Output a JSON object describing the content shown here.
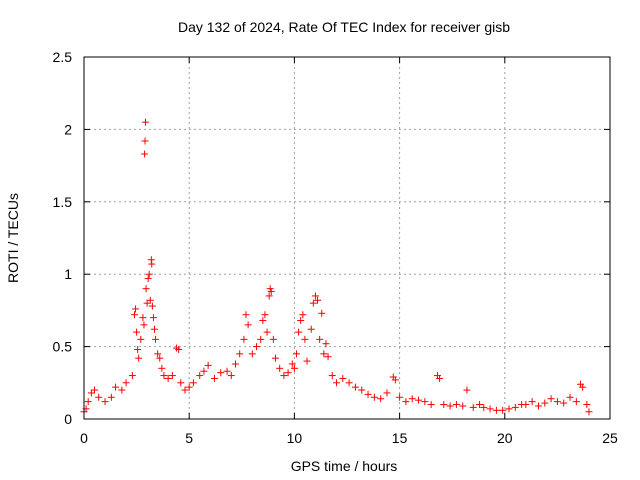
{
  "chart_data": {
    "type": "scatter",
    "title": "Day 132 of 2024, Rate Of TEC Index for receiver gisb",
    "xlabel": "GPS time / hours",
    "ylabel": "ROTI / TECUs",
    "xlim": [
      0,
      25
    ],
    "ylim": [
      0,
      2.5
    ],
    "x_ticks": [
      "0",
      "5",
      "10",
      "15",
      "20",
      "25"
    ],
    "y_ticks": [
      "0",
      "0.5",
      "1",
      "1.5",
      "2",
      "2.5"
    ],
    "grid": true,
    "marker": "+",
    "color": "#ff0000",
    "series": [
      {
        "points": [
          [
            0.0,
            0.05
          ],
          [
            0.1,
            0.07
          ],
          [
            0.2,
            0.12
          ],
          [
            0.35,
            0.18
          ],
          [
            0.5,
            0.2
          ],
          [
            0.7,
            0.15
          ],
          [
            1.0,
            0.12
          ],
          [
            1.3,
            0.15
          ],
          [
            1.5,
            0.22
          ],
          [
            1.8,
            0.2
          ],
          [
            2.0,
            0.25
          ],
          [
            2.3,
            0.3
          ],
          [
            2.4,
            0.72
          ],
          [
            2.45,
            0.76
          ],
          [
            2.5,
            0.6
          ],
          [
            2.55,
            0.48
          ],
          [
            2.6,
            0.42
          ],
          [
            2.7,
            0.55
          ],
          [
            2.8,
            0.7
          ],
          [
            2.85,
            0.65
          ],
          [
            2.88,
            1.83
          ],
          [
            2.9,
            1.92
          ],
          [
            2.92,
            2.05
          ],
          [
            2.95,
            0.9
          ],
          [
            3.0,
            0.8
          ],
          [
            3.05,
            0.97
          ],
          [
            3.1,
            1.0
          ],
          [
            3.15,
            0.82
          ],
          [
            3.2,
            1.1
          ],
          [
            3.22,
            1.07
          ],
          [
            3.25,
            0.78
          ],
          [
            3.3,
            0.7
          ],
          [
            3.35,
            0.62
          ],
          [
            3.4,
            0.55
          ],
          [
            3.5,
            0.45
          ],
          [
            3.6,
            0.42
          ],
          [
            3.7,
            0.35
          ],
          [
            3.8,
            0.3
          ],
          [
            4.0,
            0.28
          ],
          [
            4.2,
            0.3
          ],
          [
            4.4,
            0.49
          ],
          [
            4.5,
            0.48
          ],
          [
            4.6,
            0.25
          ],
          [
            4.8,
            0.2
          ],
          [
            5.0,
            0.22
          ],
          [
            5.2,
            0.25
          ],
          [
            5.5,
            0.3
          ],
          [
            5.7,
            0.33
          ],
          [
            5.9,
            0.37
          ],
          [
            6.2,
            0.28
          ],
          [
            6.5,
            0.32
          ],
          [
            6.8,
            0.33
          ],
          [
            7.0,
            0.3
          ],
          [
            7.2,
            0.38
          ],
          [
            7.4,
            0.45
          ],
          [
            7.6,
            0.55
          ],
          [
            7.7,
            0.72
          ],
          [
            7.8,
            0.65
          ],
          [
            8.0,
            0.45
          ],
          [
            8.2,
            0.5
          ],
          [
            8.4,
            0.55
          ],
          [
            8.5,
            0.68
          ],
          [
            8.6,
            0.72
          ],
          [
            8.7,
            0.6
          ],
          [
            8.8,
            0.85
          ],
          [
            8.85,
            0.9
          ],
          [
            8.9,
            0.88
          ],
          [
            9.0,
            0.55
          ],
          [
            9.1,
            0.42
          ],
          [
            9.3,
            0.35
          ],
          [
            9.5,
            0.3
          ],
          [
            9.7,
            0.32
          ],
          [
            9.9,
            0.38
          ],
          [
            10.0,
            0.35
          ],
          [
            10.1,
            0.45
          ],
          [
            10.2,
            0.6
          ],
          [
            10.3,
            0.68
          ],
          [
            10.4,
            0.72
          ],
          [
            10.5,
            0.55
          ],
          [
            10.6,
            0.4
          ],
          [
            10.8,
            0.62
          ],
          [
            10.9,
            0.8
          ],
          [
            11.0,
            0.85
          ],
          [
            11.1,
            0.82
          ],
          [
            11.2,
            0.55
          ],
          [
            11.3,
            0.73
          ],
          [
            11.4,
            0.45
          ],
          [
            11.5,
            0.52
          ],
          [
            11.6,
            0.43
          ],
          [
            11.8,
            0.3
          ],
          [
            12.0,
            0.25
          ],
          [
            12.3,
            0.28
          ],
          [
            12.6,
            0.25
          ],
          [
            12.9,
            0.22
          ],
          [
            13.2,
            0.2
          ],
          [
            13.5,
            0.17
          ],
          [
            13.8,
            0.15
          ],
          [
            14.1,
            0.14
          ],
          [
            14.4,
            0.18
          ],
          [
            14.7,
            0.29
          ],
          [
            14.8,
            0.27
          ],
          [
            15.0,
            0.15
          ],
          [
            15.3,
            0.12
          ],
          [
            15.6,
            0.14
          ],
          [
            15.9,
            0.13
          ],
          [
            16.2,
            0.12
          ],
          [
            16.5,
            0.1
          ],
          [
            16.8,
            0.3
          ],
          [
            16.9,
            0.28
          ],
          [
            17.1,
            0.1
          ],
          [
            17.4,
            0.09
          ],
          [
            17.7,
            0.1
          ],
          [
            18.0,
            0.09
          ],
          [
            18.2,
            0.2
          ],
          [
            18.5,
            0.08
          ],
          [
            18.8,
            0.1
          ],
          [
            19.0,
            0.08
          ],
          [
            19.3,
            0.07
          ],
          [
            19.6,
            0.06
          ],
          [
            19.9,
            0.06
          ],
          [
            20.2,
            0.07
          ],
          [
            20.5,
            0.08
          ],
          [
            20.8,
            0.1
          ],
          [
            21.0,
            0.1
          ],
          [
            21.3,
            0.12
          ],
          [
            21.6,
            0.09
          ],
          [
            21.9,
            0.11
          ],
          [
            22.2,
            0.14
          ],
          [
            22.5,
            0.12
          ],
          [
            22.8,
            0.11
          ],
          [
            23.1,
            0.15
          ],
          [
            23.4,
            0.12
          ],
          [
            23.6,
            0.24
          ],
          [
            23.7,
            0.22
          ],
          [
            23.9,
            0.1
          ],
          [
            24.0,
            0.05
          ]
        ]
      }
    ]
  }
}
